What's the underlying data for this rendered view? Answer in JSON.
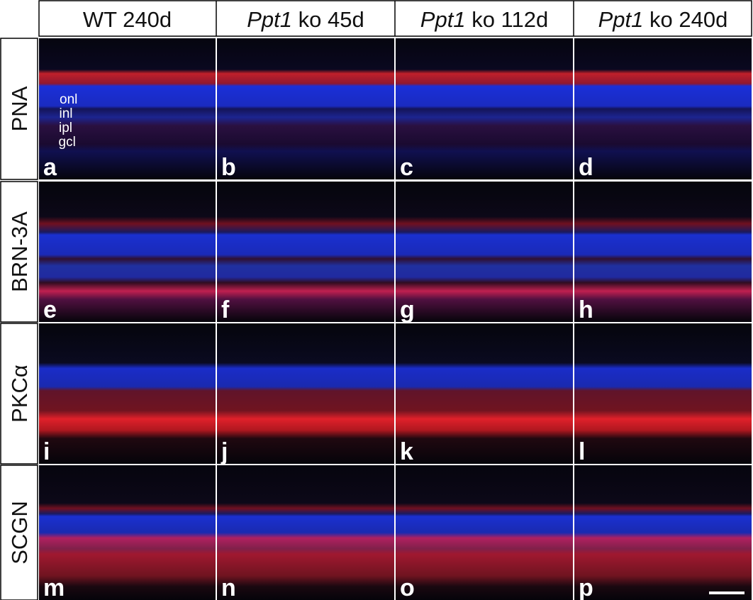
{
  "columns": [
    {
      "text": "WT 240d"
    },
    {
      "italic": "Ppt1",
      "rest": "ko 45d"
    },
    {
      "italic": "Ppt1",
      "rest": "ko 112d"
    },
    {
      "italic": "Ppt1",
      "rest": "ko 240d"
    }
  ],
  "rows": [
    {
      "label": "PNA",
      "panels": [
        "a",
        "b",
        "c",
        "d"
      ]
    },
    {
      "label": "BRN-3A",
      "panels": [
        "e",
        "f",
        "g",
        "h"
      ]
    },
    {
      "label": "PKCα",
      "panels": [
        "i",
        "j",
        "k",
        "l"
      ]
    },
    {
      "label": "SCGN",
      "panels": [
        "m",
        "n",
        "o",
        "p"
      ]
    }
  ],
  "layers": [
    "onl",
    "inl",
    "ipl",
    "gcl"
  ]
}
